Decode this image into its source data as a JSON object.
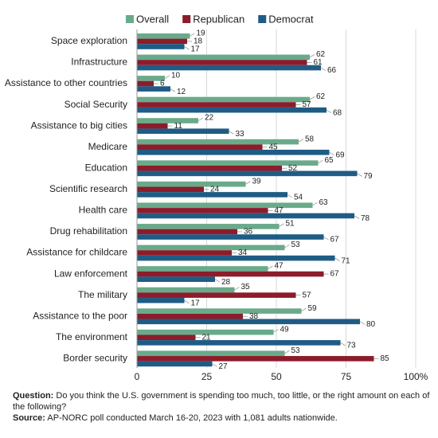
{
  "chart_data": {
    "type": "grouped-horizontal-bar",
    "categories": [
      "Space exploration",
      "Infrastructure",
      "Assistance to other countries",
      "Social Security",
      "Assistance to big cities",
      "Medicare",
      "Education",
      "Scientific research",
      "Health care",
      "Drug rehabilitation",
      "Assistance for childcare",
      "Law enforcement",
      "The military",
      "Assistance to the poor",
      "The environment",
      "Border security"
    ],
    "series": [
      {
        "name": "Overall",
        "color": "#6aaa8a",
        "values": [
          19,
          62,
          10,
          62,
          22,
          58,
          65,
          39,
          63,
          51,
          53,
          47,
          35,
          59,
          49,
          53
        ]
      },
      {
        "name": "Republican",
        "color": "#8c1c2b",
        "values": [
          18,
          61,
          6,
          57,
          11,
          45,
          52,
          24,
          47,
          36,
          34,
          67,
          57,
          38,
          21,
          85
        ]
      },
      {
        "name": "Democrat",
        "color": "#1f5c85",
        "values": [
          17,
          66,
          12,
          68,
          33,
          69,
          79,
          54,
          78,
          67,
          71,
          28,
          17,
          80,
          73,
          27
        ]
      }
    ],
    "xlim": [
      0,
      100
    ],
    "xticks": [
      0,
      25,
      50,
      75,
      {
        "value": 100,
        "label": "100%"
      }
    ],
    "grid": true,
    "footnotes": [
      {
        "label": "Question:",
        "text": "Do you think the U.S. government is spending too much, too little, or the right amount on each of the following?"
      },
      {
        "label": "Source:",
        "text": "AP-NORC poll conducted March 16-20, 2023 with 1,081 adults nationwide."
      }
    ]
  }
}
